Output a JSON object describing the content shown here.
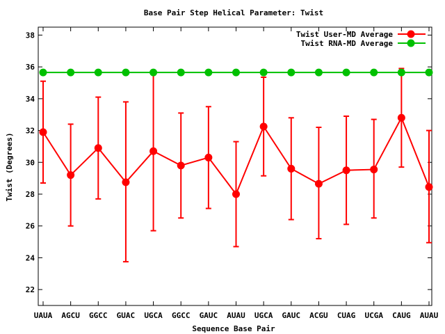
{
  "chart_data": {
    "type": "line",
    "title": "Base Pair Step Helical Parameter: Twist",
    "xlabel": "Sequence Base Pair",
    "ylabel": "Twist (Degrees)",
    "categories": [
      "UAUA",
      "AGCU",
      "GGCC",
      "GUAC",
      "UGCA",
      "GGCC",
      "GAUC",
      "AUAU",
      "UGCA",
      "GAUC",
      "ACGU",
      "CUAG",
      "UCGA",
      "CAUG",
      "AUAU"
    ],
    "ylim": [
      21,
      38.5
    ],
    "yticks": [
      22,
      24,
      26,
      28,
      30,
      32,
      34,
      36,
      38
    ],
    "legend_position": "top-right",
    "series": [
      {
        "name": "Twist User-MD Average",
        "color": "#ff0000",
        "values": [
          31.9,
          29.2,
          30.9,
          28.75,
          30.7,
          29.8,
          30.3,
          28.0,
          32.25,
          29.6,
          28.65,
          29.5,
          29.55,
          32.8,
          28.45
        ],
        "error_low": [
          28.7,
          26.0,
          27.7,
          23.75,
          25.7,
          26.5,
          27.1,
          24.7,
          29.15,
          26.4,
          25.2,
          26.1,
          26.5,
          29.7,
          24.95
        ],
        "error_high": [
          35.1,
          32.4,
          34.1,
          33.8,
          35.7,
          33.1,
          33.5,
          31.3,
          35.35,
          32.8,
          32.2,
          32.9,
          32.7,
          35.9,
          32.0
        ]
      },
      {
        "name": "Twist RNA-MD Average",
        "color": "#00c000",
        "values": [
          35.65,
          35.65,
          35.65,
          35.65,
          35.65,
          35.65,
          35.65,
          35.65,
          35.65,
          35.65,
          35.65,
          35.65,
          35.65,
          35.65,
          35.65
        ]
      }
    ]
  }
}
